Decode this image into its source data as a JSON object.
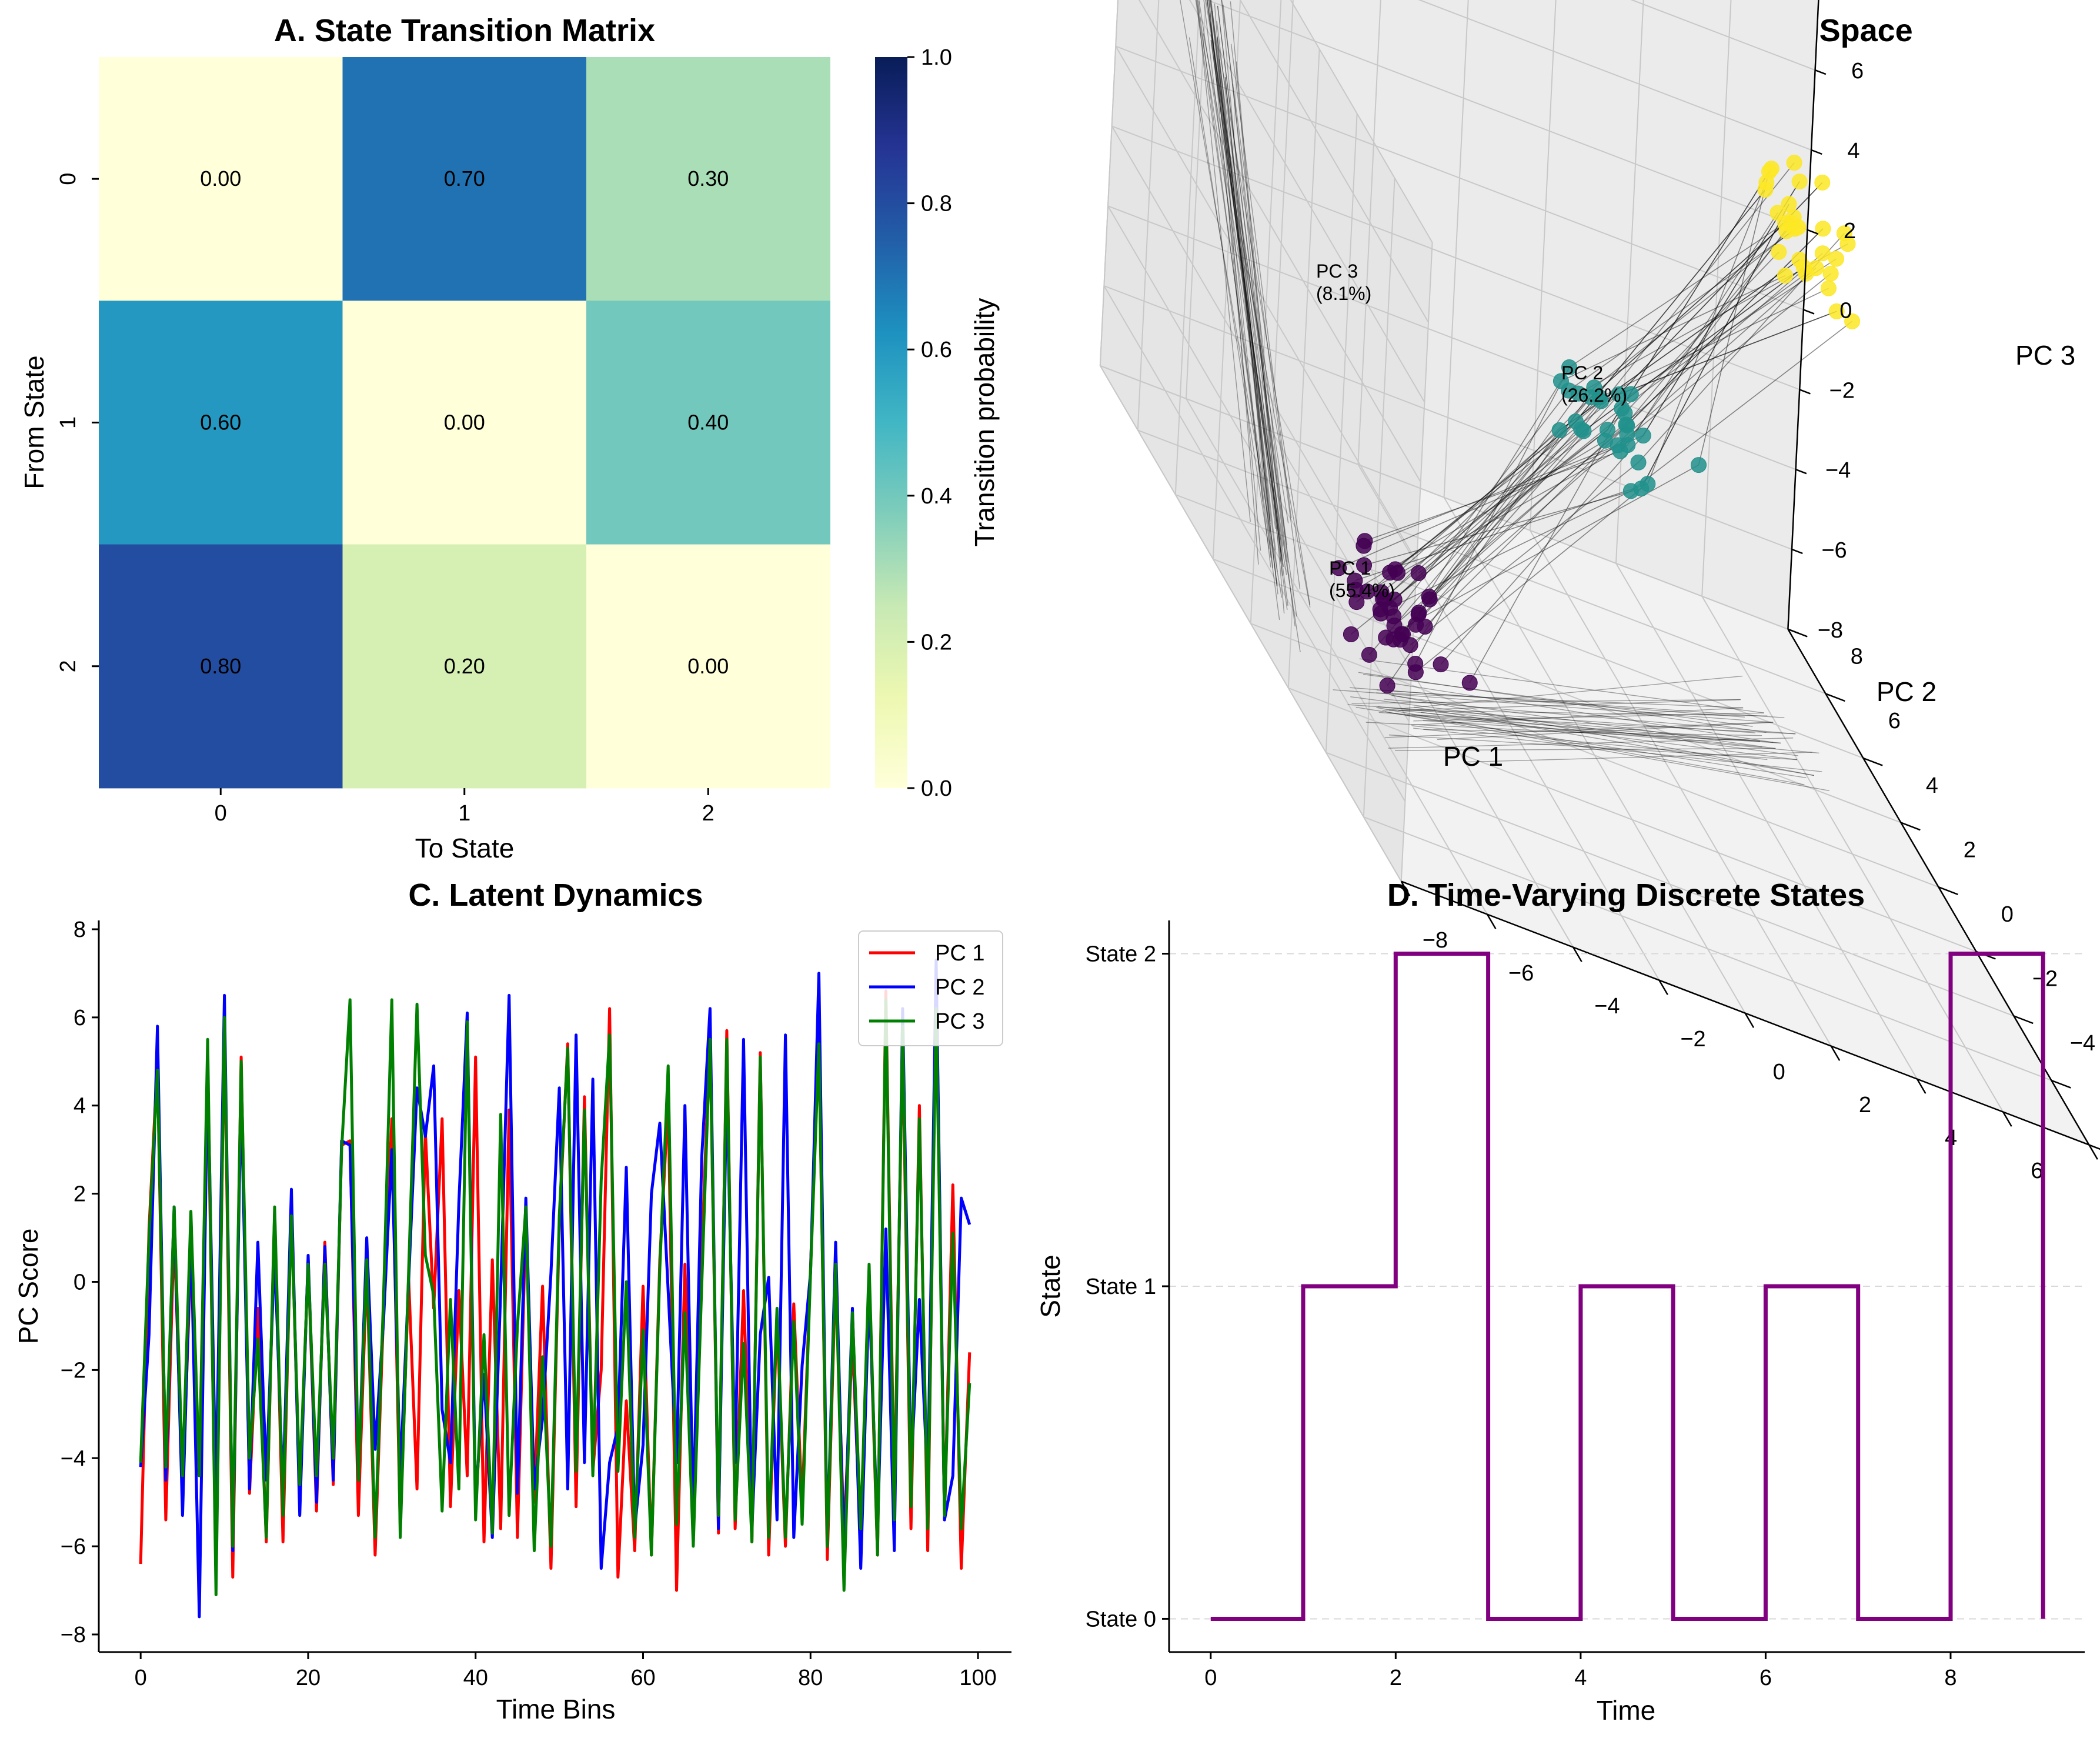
{
  "chart_data": [
    {
      "type": "heatmap",
      "title": "A. State Transition Matrix",
      "xlabel": "To State",
      "ylabel": "From State",
      "x_categories": [
        "0",
        "1",
        "2"
      ],
      "y_categories": [
        "0",
        "1",
        "2"
      ],
      "values": [
        [
          0.0,
          0.7,
          0.3
        ],
        [
          0.6,
          0.0,
          0.4
        ],
        [
          0.8,
          0.2,
          0.0
        ]
      ],
      "value_labels": [
        [
          "0.00",
          "0.70",
          "0.30"
        ],
        [
          "0.60",
          "0.00",
          "0.40"
        ],
        [
          "0.80",
          "0.20",
          "0.00"
        ]
      ],
      "colormap": "YlGnBu",
      "colorbar": {
        "label": "Transition probability",
        "range": [
          0,
          1
        ],
        "ticks": [
          "0.0",
          "0.2",
          "0.4",
          "0.6",
          "0.8",
          "1.0"
        ]
      }
    },
    {
      "type": "scatter",
      "title": "B. Neural Trajectories in Latent Space",
      "xlabel": "PC 1",
      "ylabel": "PC 2",
      "zlabel": "PC 3",
      "x_ticks": [
        "−8",
        "−6",
        "−4",
        "−2",
        "0",
        "2",
        "4",
        "6",
        "8"
      ],
      "y_ticks": [
        "−8",
        "−6",
        "−4",
        "−2",
        "0",
        "2",
        "4",
        "6",
        "8"
      ],
      "z_ticks": [
        "−8",
        "−6",
        "−4",
        "−2",
        "0",
        "2",
        "4",
        "6",
        "8"
      ],
      "annotations": [
        "PC 1\n(55.4%)",
        "PC 2\n(26.2%)",
        "PC 3\n(8.1%)"
      ],
      "clusters": [
        {
          "color": "#440154",
          "center": [
            -5.5,
            -1.5,
            -5.5
          ],
          "count": 40
        },
        {
          "color": "#21918c",
          "center": [
            0.5,
            1.5,
            -0.5
          ],
          "count": 30
        },
        {
          "color": "#fde725",
          "center": [
            6.0,
            3.5,
            4.5
          ],
          "count": 30
        }
      ],
      "trajectory_color": "#000000",
      "grid": true
    },
    {
      "type": "line",
      "title": "C. Latent Dynamics",
      "xlabel": "Time Bins",
      "ylabel": "PC Score",
      "xlim": [
        -5,
        104
      ],
      "ylim": [
        -8.4,
        8.2
      ],
      "x_ticks": [
        "0",
        "20",
        "40",
        "60",
        "80",
        "100"
      ],
      "y_ticks": [
        "−8",
        "−6",
        "−4",
        "−2",
        "0",
        "2",
        "4",
        "6",
        "8"
      ],
      "legend_position": "top-right",
      "series": [
        {
          "name": "PC 1",
          "color": "#ff0000",
          "values": [
            -6.4,
            1.2,
            5.0,
            -5.4,
            1.2,
            -4.8,
            0.6,
            -4.4,
            4.9,
            -6.6,
            5.8,
            -6.7,
            5.1,
            -4.8,
            -0.6,
            -5.9,
            1.6,
            -5.9,
            1.7,
            -5.0,
            0.5,
            -5.2,
            0.9,
            -4.6,
            3.1,
            3.2,
            -5.3,
            0.3,
            -6.2,
            -0.7,
            3.7,
            -5.6,
            0.1,
            -4.7,
            3.4,
            -0.6,
            3.7,
            -5.1,
            -0.2,
            -4.4,
            5.1,
            -5.9,
            0.5,
            -5.6,
            3.9,
            -5.8,
            1.5,
            -5.0,
            -0.1,
            -6.5,
            1.3,
            5.4,
            -5.1,
            4.2,
            -4.3,
            -2.0,
            6.2,
            -6.7,
            -2.7,
            -6.1,
            -0.1,
            -6.2,
            0.5,
            4.1,
            -7.0,
            0.4,
            -5.7,
            0.6,
            5.7,
            -5.7,
            5.7,
            -5.6,
            -0.2,
            -5.9,
            5.2,
            -6.2,
            -0.8,
            -6.0,
            -0.5,
            -5.1,
            0.3,
            5.6,
            -6.3,
            0.2,
            -5.8,
            -1.3,
            -6.0,
            0.0,
            -6.2,
            6.6,
            -5.0,
            5.5,
            -5.6,
            4.0,
            -6.1,
            7.0,
            -5.4,
            2.2,
            -6.5,
            -1.6
          ]
        },
        {
          "name": "PC 2",
          "color": "#0000ff",
          "values": [
            -4.2,
            -1.2,
            5.8,
            -4.5,
            1.7,
            -5.3,
            1.2,
            -7.6,
            4.9,
            -4.9,
            6.5,
            -6.1,
            4.4,
            -4.7,
            0.9,
            -4.5,
            0.7,
            -4.8,
            2.1,
            -5.3,
            0.6,
            -5.0,
            0.8,
            -4.5,
            3.2,
            3.1,
            -4.5,
            1.0,
            -3.8,
            -0.9,
            3.0,
            -4.4,
            0.0,
            4.4,
            3.3,
            4.9,
            -2.9,
            -4.1,
            1.8,
            6.1,
            -5.0,
            -2.1,
            -5.8,
            -0.2,
            6.5,
            -4.8,
            1.9,
            -4.7,
            -3.1,
            0.2,
            4.4,
            -4.7,
            5.6,
            -4.1,
            4.6,
            -6.5,
            -4.1,
            -3.3,
            2.6,
            -5.6,
            -3.7,
            2.0,
            3.6,
            -0.2,
            -4.1,
            4.0,
            -5.3,
            2.8,
            6.2,
            -5.6,
            4.5,
            -4.1,
            5.5,
            -5.6,
            -1.2,
            0.1,
            -5.4,
            5.6,
            -5.8,
            -1.9,
            0.2,
            7.0,
            -6.0,
            0.9,
            -6.3,
            -0.6,
            -6.5,
            -0.2,
            -5.7,
            1.2,
            -6.1,
            6.2,
            -4.3,
            -0.4,
            -4.6,
            7.3,
            -5.4,
            -4.4,
            1.9,
            1.3
          ]
        },
        {
          "name": "PC 3",
          "color": "#008000",
          "values": [
            -4.1,
            1.0,
            4.8,
            -4.2,
            1.7,
            -4.4,
            1.6,
            -4.4,
            5.5,
            -7.1,
            6.0,
            -6.0,
            5.0,
            -4.0,
            -1.3,
            -5.8,
            1.7,
            -5.3,
            1.5,
            -4.6,
            0.4,
            -4.4,
            0.4,
            -4.0,
            3.0,
            6.4,
            -4.5,
            0.5,
            -5.8,
            -0.4,
            6.4,
            -5.8,
            0.2,
            6.3,
            0.6,
            -0.3,
            -5.2,
            -0.4,
            -4.7,
            5.9,
            -5.4,
            -1.2,
            -5.7,
            3.8,
            -5.3,
            -1.0,
            1.7,
            -6.1,
            -1.7,
            -6.0,
            1.5,
            5.3,
            -4.3,
            3.9,
            -4.4,
            2.3,
            5.6,
            -4.3,
            0.0,
            -5.8,
            -1.1,
            -6.2,
            0.3,
            4.9,
            -5.5,
            -0.7,
            -6.0,
            -0.1,
            5.5,
            -5.3,
            5.5,
            -5.4,
            -1.4,
            -5.9,
            5.1,
            -5.8,
            -0.6,
            -5.8,
            -0.9,
            -5.5,
            0.2,
            5.4,
            -6.0,
            0.4,
            -7.0,
            -0.7,
            -5.6,
            0.4,
            -6.2,
            6.4,
            -5.4,
            5.8,
            -5.1,
            3.7,
            -5.6,
            6.2,
            -5.3,
            1.1,
            -5.6,
            -2.3
          ]
        }
      ]
    },
    {
      "type": "line",
      "title": "D. Time-Varying Discrete States",
      "xlabel": "Time",
      "ylabel": "State",
      "xlim": [
        -0.45,
        9.45
      ],
      "ylim": [
        -0.1,
        2.1
      ],
      "x_ticks": [
        "0",
        "2",
        "4",
        "6",
        "8"
      ],
      "y_ticks": [
        "State 0",
        "State 1",
        "State 2"
      ],
      "drawstyle": "steps-post",
      "grid": "horizontal-dashed",
      "series": [
        {
          "color": "#800080",
          "x": [
            0,
            1,
            2,
            3,
            4,
            5,
            6,
            7,
            8,
            9
          ],
          "values": [
            0,
            1,
            2,
            0,
            1,
            0,
            1,
            0,
            2,
            0
          ]
        }
      ]
    }
  ]
}
